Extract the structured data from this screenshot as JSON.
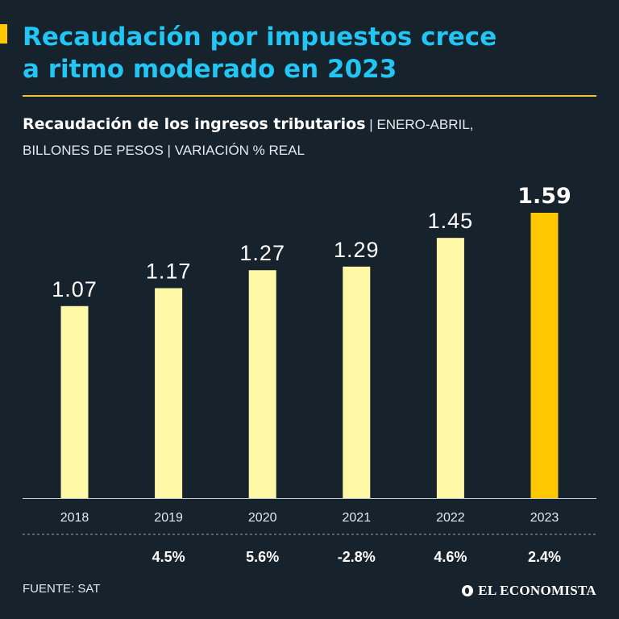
{
  "header": {
    "title_line1": "Recaudación por impuestos crece",
    "title_line2": "a ritmo moderado en 2023",
    "subtitle_strong": "Recaudación de los ingresos tributarios",
    "subtitle_part1": "ENERO-ABRIL,",
    "subtitle_part2": "BILLONES DE PESOS",
    "subtitle_part3": "VARIACIÓN % REAL",
    "separator": "|"
  },
  "colors": {
    "background": "#16222c",
    "title": "#21c6f4",
    "bar": "#fff8a6",
    "bar_highlight": "#ffc800",
    "rule": "#e8c23a"
  },
  "chart_data": {
    "type": "bar",
    "title": "Recaudación de los ingresos tributarios",
    "xlabel": "",
    "ylabel": "Billones de pesos",
    "ylim": [
      0,
      1.59
    ],
    "categories": [
      "2018",
      "2019",
      "2020",
      "2021",
      "2022",
      "2023"
    ],
    "values": [
      1.07,
      1.17,
      1.27,
      1.29,
      1.45,
      1.59
    ],
    "value_labels": [
      "1.07",
      "1.17",
      "1.27",
      "1.29",
      "1.45",
      "1.59"
    ],
    "variation_labels": [
      "",
      "4.5%",
      "5.6%",
      "-2.8%",
      "4.6%",
      "2.4%"
    ],
    "highlight_index": 5
  },
  "footer": {
    "source": "FUENTE: SAT",
    "logo_text": "EL ECONOMISTA"
  }
}
